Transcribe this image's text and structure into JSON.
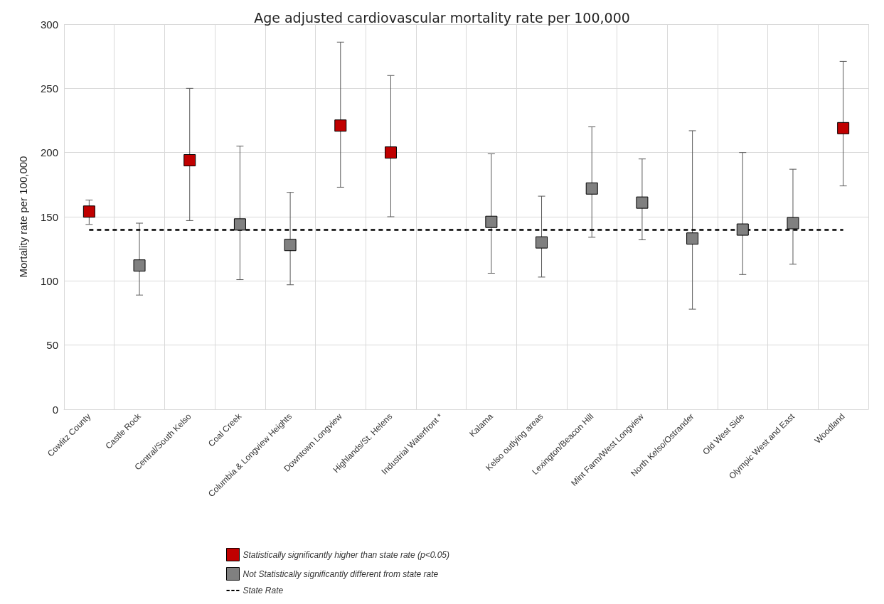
{
  "chart_data": {
    "type": "scatter",
    "title": "Age adjusted cardiovascular mortality rate per 100,000",
    "ylabel": "Mortality rate per 100,000",
    "categories": [
      "Cowlitz County",
      "Castle Rock",
      "Central/South Kelso",
      "Coal Creek",
      "Columbia & Longview Heights",
      "Downtown Longview",
      "Highlands/St. Helens",
      "Industrial Waterfront *",
      "Kalama",
      "Kelso outlying areas",
      "Lexington/Beacon Hill",
      "Mint Farm/West Longview",
      "North Kelso/Ostrander",
      "Old West Side",
      "Olympic West and East",
      "Woodland"
    ],
    "series": [
      {
        "name": "Statistically significantly higher than state rate (p<0.05)",
        "color": "#c00000",
        "values": [
          154,
          null,
          194,
          null,
          null,
          221,
          200,
          null,
          null,
          null,
          null,
          null,
          null,
          null,
          null,
          219
        ],
        "errors": [
          [
            144,
            163
          ],
          null,
          [
            147,
            250
          ],
          null,
          null,
          [
            173,
            286
          ],
          [
            150,
            260
          ],
          null,
          null,
          null,
          null,
          null,
          null,
          null,
          null,
          [
            174,
            271
          ]
        ]
      },
      {
        "name": "Not Statistically significantly different from state rate",
        "color": "#808080",
        "values": [
          null,
          112,
          null,
          144,
          128,
          null,
          null,
          null,
          146,
          130,
          172,
          161,
          133,
          140,
          145,
          null
        ],
        "errors": [
          null,
          [
            89,
            145
          ],
          null,
          [
            101,
            205
          ],
          [
            97,
            169
          ],
          null,
          null,
          null,
          [
            106,
            199
          ],
          [
            103,
            166
          ],
          [
            134,
            220
          ],
          [
            132,
            195
          ],
          [
            78,
            217
          ],
          [
            105,
            200
          ],
          [
            113,
            187
          ],
          null
        ]
      }
    ],
    "ref_lines": [
      {
        "axis": "y",
        "value": 140,
        "label": "State Rate",
        "color": "#000000",
        "line_style": "dashed"
      }
    ],
    "ylim": [
      0,
      300
    ],
    "yticks": [
      0,
      50,
      100,
      150,
      200,
      250,
      300
    ],
    "grid": true,
    "legend": "bottom",
    "marker": "square"
  }
}
